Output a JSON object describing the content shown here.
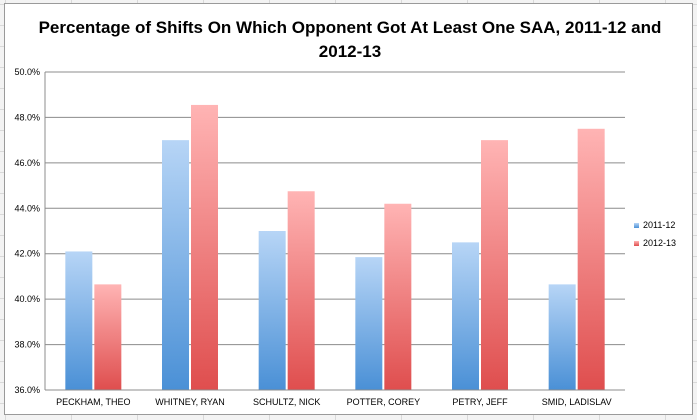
{
  "chart_data": {
    "type": "bar",
    "title": "Percentage of Shifts On Which Opponent Got At Least One SAA, 2011-12 and 2012-13",
    "categories": [
      "PECKHAM, THEO",
      "WHITNEY, RYAN",
      "SCHULTZ, NICK",
      "POTTER, COREY",
      "PETRY, JEFF",
      "SMID, LADISLAV"
    ],
    "series": [
      {
        "name": "2011-12",
        "color": "#5a9fde",
        "values": [
          42.1,
          47.0,
          43.0,
          41.85,
          42.5,
          40.65
        ]
      },
      {
        "name": "2012-13",
        "color": "#e35a5a",
        "values": [
          40.65,
          48.55,
          44.75,
          44.2,
          47.0,
          47.5
        ]
      }
    ],
    "ylim": [
      36.0,
      50.0
    ],
    "yticks": [
      "36.0%",
      "38.0%",
      "40.0%",
      "42.0%",
      "44.0%",
      "46.0%",
      "48.0%",
      "50.0%"
    ],
    "xlabel": "",
    "ylabel": "",
    "grid": true,
    "legend_position": "right"
  }
}
